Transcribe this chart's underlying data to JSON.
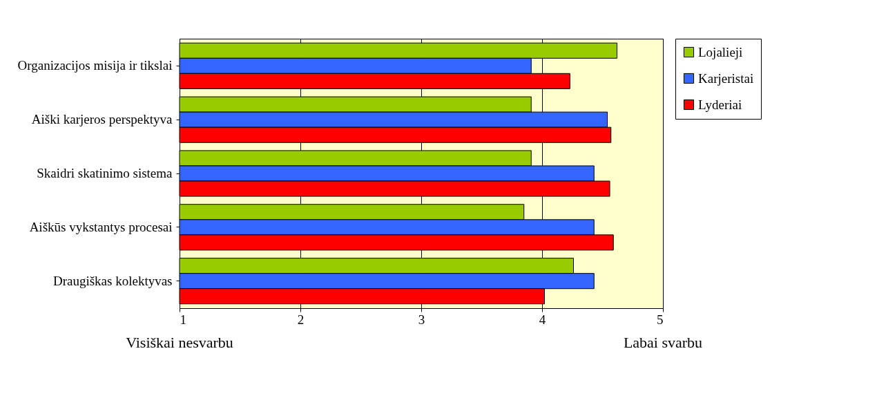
{
  "chart_data": {
    "type": "bar",
    "orientation": "horizontal",
    "categories": [
      "Organizacijos misija ir tikslai",
      "Aiški karjeros perspektyva",
      "Skaidri skatinimo sistema",
      "Aiškūs vykstantys procesai",
      "Draugiškas kolektyvas"
    ],
    "series": [
      {
        "name": "Lojalieji",
        "color": "#99cc00",
        "values": [
          4.62,
          3.91,
          3.91,
          3.85,
          4.26
        ]
      },
      {
        "name": "Karjeristai",
        "color": "#3366ff",
        "values": [
          3.91,
          4.54,
          4.43,
          4.43,
          4.43
        ]
      },
      {
        "name": "Lyderiai",
        "color": "#ff0000",
        "values": [
          4.23,
          4.57,
          4.56,
          4.59,
          4.02
        ]
      }
    ],
    "xlim": [
      1,
      5
    ],
    "xticks": [
      1,
      2,
      3,
      4,
      5
    ],
    "grid": "x",
    "legend": "right",
    "annotations": [
      "Visiškai nesvarbu",
      "Labai svarbu"
    ]
  }
}
